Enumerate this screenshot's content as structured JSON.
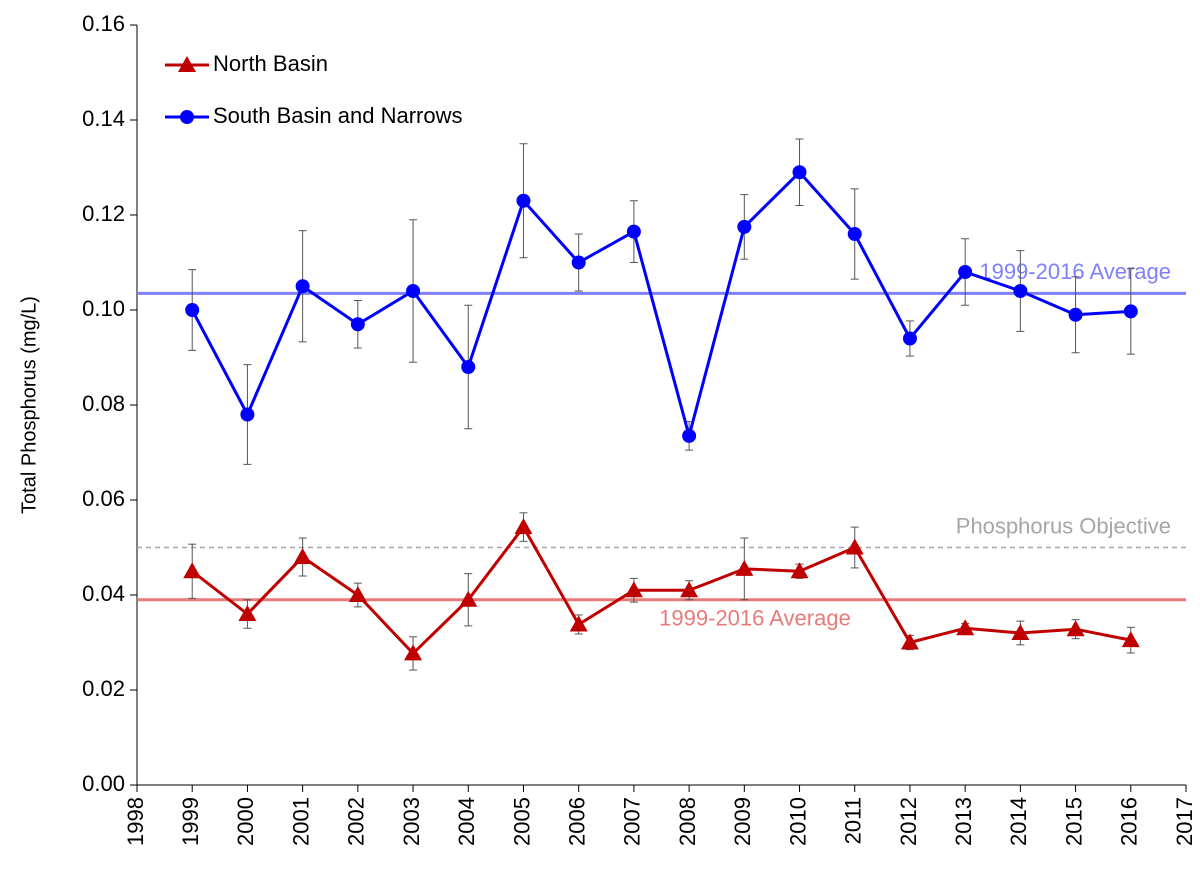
{
  "chart_data": {
    "type": "line",
    "y_label": "Total Phosphorus (mg/L)",
    "x": [
      1999,
      2000,
      2001,
      2002,
      2003,
      2004,
      2005,
      2006,
      2007,
      2008,
      2009,
      2010,
      2011,
      2012,
      2013,
      2014,
      2015,
      2016
    ],
    "series": [
      {
        "name": "North Basin",
        "color": "#c00000",
        "marker": "triangle",
        "values": [
          0.045,
          0.036,
          0.048,
          0.04,
          0.0277,
          0.039,
          0.0543,
          0.0338,
          0.041,
          0.041,
          0.0455,
          0.045,
          0.05,
          0.03,
          0.033,
          0.032,
          0.0328,
          0.0305
        ],
        "errors": [
          0.0057,
          0.003,
          0.004,
          0.0025,
          0.0035,
          0.0055,
          0.003,
          0.002,
          0.0025,
          0.002,
          0.0065,
          0.0015,
          0.0043,
          0.0015,
          0.001,
          0.0025,
          0.002,
          0.0027
        ]
      },
      {
        "name": "South Basin and Narrows",
        "color": "#0000ff",
        "marker": "circle",
        "values": [
          0.1,
          0.078,
          0.105,
          0.097,
          0.104,
          0.088,
          0.123,
          0.11,
          0.1165,
          0.0735,
          0.1175,
          0.129,
          0.116,
          0.094,
          0.108,
          0.104,
          0.099,
          0.0997
        ],
        "errors": [
          0.0085,
          0.0105,
          0.0117,
          0.005,
          0.015,
          0.013,
          0.012,
          0.006,
          0.0065,
          0.003,
          0.0068,
          0.007,
          0.0095,
          0.0037,
          0.007,
          0.0085,
          0.008,
          0.009
        ]
      }
    ],
    "error_bar_color": "#555555",
    "reference_lines": [
      {
        "value": 0.1035,
        "label": "1999-2016 Average",
        "color": "#7f7fff",
        "style": "solid"
      },
      {
        "value": 0.05,
        "label": "Phosphorus Objective",
        "color": "#a6a6a6",
        "style": "dashed"
      },
      {
        "value": 0.039,
        "label": "1999-2016 Average",
        "color": "#e87a7a",
        "style": "solid"
      }
    ],
    "xlim": [
      1998,
      2017
    ],
    "xticks": [
      1998,
      1999,
      2000,
      2001,
      2002,
      2003,
      2004,
      2005,
      2006,
      2007,
      2008,
      2009,
      2010,
      2011,
      2012,
      2013,
      2014,
      2015,
      2016,
      2017
    ],
    "ylim": [
      0,
      0.16
    ],
    "yticks": [
      {
        "value": 0,
        "label": "0.00"
      },
      0.02,
      0.04,
      0.06,
      0.08,
      {
        "value": 0.1,
        "label": "0.10"
      },
      0.12,
      0.14,
      0.16
    ],
    "legend": "upper left"
  }
}
